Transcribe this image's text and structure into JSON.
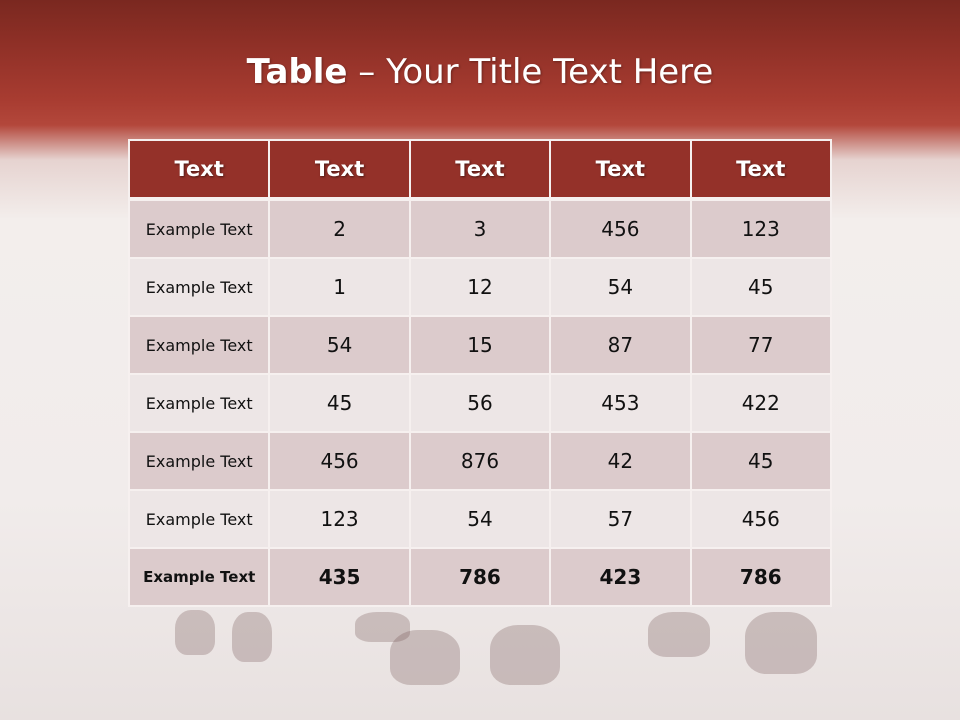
{
  "title": {
    "bold": "Table",
    "rest": " – Your Title Text Here"
  },
  "table": {
    "headers": [
      "Text",
      "Text",
      "Text",
      "Text",
      "Text"
    ],
    "rows": [
      [
        "Example Text",
        "2",
        "3",
        "456",
        "123"
      ],
      [
        "Example Text",
        "1",
        "12",
        "54",
        "45"
      ],
      [
        "Example Text",
        "54",
        "15",
        "87",
        "77"
      ],
      [
        "Example Text",
        "45",
        "56",
        "453",
        "422"
      ],
      [
        "Example Text",
        "456",
        "876",
        "42",
        "45"
      ],
      [
        "Example Text",
        "123",
        "54",
        "57",
        "456"
      ],
      [
        "Example Text",
        "435",
        "786",
        "423",
        "786"
      ]
    ]
  },
  "colors": {
    "header": "#943129",
    "row_odd": "#dccbcc",
    "row_even": "#ede6e6",
    "banner": "#a83c31"
  }
}
